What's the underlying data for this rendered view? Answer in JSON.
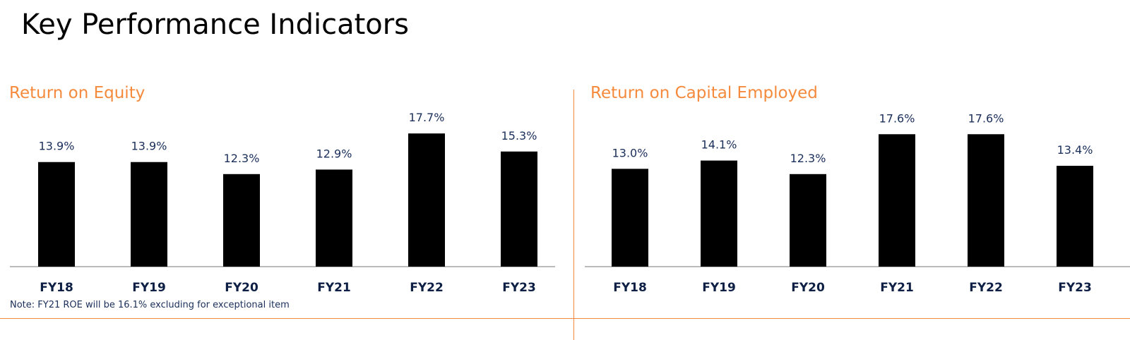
{
  "page": {
    "title": "Key Performance Indicators"
  },
  "colors": {
    "accent": "#f58a3c",
    "bar": "#000000",
    "label": "#1a2f5a"
  },
  "note": "Note: FY21 ROE will be 16.1% excluding for exceptional item",
  "chart_data": [
    {
      "type": "bar",
      "title": "Return on Equity",
      "categories": [
        "FY18",
        "FY19",
        "FY20",
        "FY21",
        "FY22",
        "FY23"
      ],
      "values": [
        13.9,
        13.9,
        12.3,
        12.9,
        17.7,
        15.3
      ],
      "data_labels": [
        "13.9%",
        "13.9%",
        "12.3%",
        "12.9%",
        "17.7%",
        "15.3%"
      ],
      "ylim": [
        0,
        18
      ],
      "grid": false,
      "legend": "none"
    },
    {
      "type": "bar",
      "title": "Return on Capital Employed",
      "categories": [
        "FY18",
        "FY19",
        "FY20",
        "FY21",
        "FY22",
        "FY23"
      ],
      "values": [
        13.0,
        14.1,
        12.3,
        17.6,
        17.6,
        13.4
      ],
      "data_labels": [
        "13.0%",
        "14.1%",
        "12.3%",
        "17.6%",
        "17.6%",
        "13.4%"
      ],
      "ylim": [
        0,
        18
      ],
      "grid": false,
      "legend": "none"
    }
  ]
}
